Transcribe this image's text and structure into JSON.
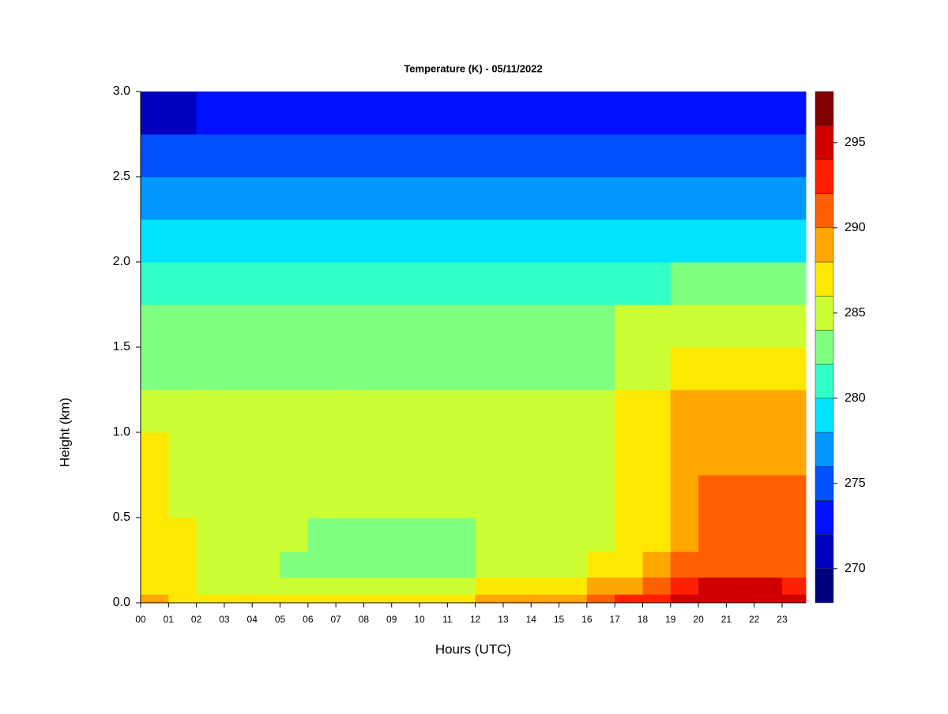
{
  "chart_data": {
    "type": "heatmap",
    "title": "Temperature (K) - 05/11/2022",
    "xlabel": "Hours (UTC)",
    "ylabel": "Height (km)",
    "xlim": [
      0,
      23.85
    ],
    "ylim": [
      0,
      3
    ],
    "xticks": [
      {
        "value": 0,
        "label": "00"
      },
      {
        "value": 1,
        "label": "01"
      },
      {
        "value": 2,
        "label": "02"
      },
      {
        "value": 3,
        "label": "03"
      },
      {
        "value": 4,
        "label": "04"
      },
      {
        "value": 5,
        "label": "05"
      },
      {
        "value": 6,
        "label": "06"
      },
      {
        "value": 7,
        "label": "07"
      },
      {
        "value": 8,
        "label": "08"
      },
      {
        "value": 9,
        "label": "09"
      },
      10,
      11,
      12,
      13,
      14,
      15,
      16,
      17,
      18,
      19,
      20,
      21,
      22,
      23
    ],
    "yticks": [
      {
        "value": 0,
        "label": "0.0"
      },
      0.5,
      {
        "value": 1,
        "label": "1.0"
      },
      1.5,
      {
        "value": 2,
        "label": "2.0"
      },
      2.5,
      {
        "value": 3,
        "label": "3.0"
      }
    ],
    "x": [
      0,
      1,
      2,
      3,
      4,
      5,
      6,
      7,
      8,
      9,
      10,
      11,
      12,
      13,
      14,
      15,
      16,
      17,
      18,
      19,
      20,
      21,
      22,
      23
    ],
    "y": [
      0,
      0.05,
      0.15,
      0.3,
      0.5,
      0.75,
      1.0,
      1.25,
      1.5,
      1.75,
      2.0,
      2.25,
      2.5,
      2.75
    ],
    "z": [
      [
        289,
        287,
        287,
        287,
        287,
        287,
        287,
        287,
        287,
        287,
        287,
        287,
        288,
        288,
        289,
        289,
        290,
        292,
        292,
        295,
        295,
        295,
        295,
        295
      ],
      [
        287,
        287,
        285,
        285,
        285,
        284,
        284,
        284,
        284,
        284,
        284,
        284,
        286,
        286,
        287,
        287,
        288,
        289,
        291,
        293,
        294,
        294,
        294,
        293
      ],
      [
        287,
        287,
        284.5,
        284.5,
        284.5,
        283,
        283,
        283,
        283,
        283,
        283,
        283,
        285,
        285,
        285,
        285,
        286,
        287,
        289,
        290,
        291,
        291,
        291,
        291
      ],
      [
        287,
        287,
        285,
        285,
        285,
        285,
        283.5,
        283.5,
        283.5,
        283.5,
        283.5,
        283.5,
        285,
        285,
        285,
        285,
        285,
        287,
        287,
        289,
        291,
        291,
        291,
        291
      ],
      [
        287,
        285,
        285,
        285,
        285,
        285,
        285,
        285,
        285,
        285,
        285,
        285,
        285,
        285,
        285,
        285,
        285,
        287,
        287,
        289,
        290,
        291,
        291,
        291
      ],
      [
        287,
        285,
        285,
        285,
        285,
        285,
        285,
        285,
        285,
        285,
        285,
        285,
        285,
        285,
        285,
        285,
        285,
        287,
        287,
        289,
        289,
        289,
        289,
        289
      ],
      [
        285,
        285,
        285,
        285,
        285,
        285,
        285,
        285,
        285,
        285,
        285,
        285,
        285,
        285,
        285,
        285,
        285,
        287,
        287,
        289,
        289,
        289,
        289,
        289
      ],
      [
        283,
        283,
        283,
        283,
        283,
        283,
        283,
        283,
        283,
        283,
        283,
        283,
        283,
        283,
        283,
        283,
        283,
        285.5,
        285.5,
        287,
        287,
        287,
        287,
        287
      ],
      [
        283,
        283,
        283,
        283,
        283,
        283,
        283,
        283,
        283,
        283,
        283,
        283,
        283,
        283,
        283,
        283,
        283,
        284,
        284,
        285,
        285,
        285,
        285,
        285
      ],
      [
        281,
        281,
        281,
        281,
        281,
        281,
        281,
        281,
        281,
        281,
        281,
        281,
        281,
        281,
        281,
        281,
        281,
        281,
        281,
        283,
        283,
        283,
        283,
        283
      ],
      [
        279,
        279,
        279,
        279,
        279,
        279,
        279,
        279,
        279,
        279,
        279,
        279,
        279,
        279,
        279,
        279,
        279,
        279,
        279,
        279,
        279,
        279,
        279,
        279
      ],
      [
        277,
        277,
        277,
        277,
        277,
        277,
        277,
        277,
        277,
        277,
        277,
        277,
        277,
        277,
        277,
        277,
        277,
        277,
        277,
        277,
        277,
        277,
        277,
        277
      ],
      [
        275,
        275,
        275,
        275,
        275,
        275,
        275,
        275,
        275,
        275,
        275,
        275,
        275,
        275,
        275,
        275,
        275,
        275,
        275,
        275,
        275,
        275,
        275,
        275
      ],
      [
        271,
        271,
        273,
        273,
        273,
        273,
        273,
        273,
        273,
        273,
        273,
        273,
        273,
        273,
        273,
        273,
        273,
        273,
        273,
        273,
        273,
        272,
        272,
        272
      ]
    ],
    "levels": [
      268,
      270,
      272,
      274,
      276,
      278,
      280,
      282,
      284,
      286,
      288,
      290,
      292,
      294,
      296,
      298
    ],
    "colors": [
      "#00007f",
      "#0000bf",
      "#0010ff",
      "#0050ff",
      "#0098ff",
      "#00e4ff",
      "#30ffc8",
      "#80ff80",
      "#ccff33",
      "#ffe800",
      "#ffa600",
      "#ff6000",
      "#ff2000",
      "#d00000",
      "#800000"
    ],
    "zticks": [
      270,
      275,
      280,
      285,
      290,
      295
    ]
  }
}
